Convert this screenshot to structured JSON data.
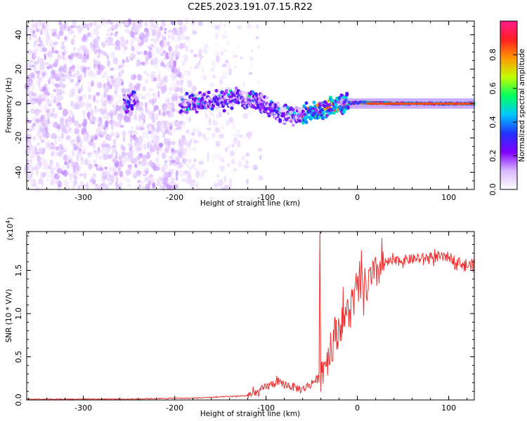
{
  "title": "C2E5.2023.191.07.15.R22",
  "chart_data": [
    {
      "type": "heatmap",
      "xlabel": "Height of straight line (km)",
      "ylabel": "Frequency (Hz)",
      "xlim": [
        -362,
        128
      ],
      "ylim": [
        -50,
        48
      ],
      "xticks": [
        -300,
        -200,
        -100,
        0,
        100
      ],
      "yticks": [
        -40,
        -20,
        0,
        20,
        40
      ],
      "colorbar": {
        "label": "Normalized spectral amplitude",
        "range": [
          0.0,
          1.0
        ],
        "ticks": [
          0.0,
          0.2,
          0.4,
          0.6,
          0.8
        ],
        "colormap": [
          "#ffffff",
          "#d9b8ff",
          "#7f00ff",
          "#2233ff",
          "#00c8ff",
          "#00ff60",
          "#c0ff00",
          "#ff9900",
          "#ff2020",
          "#ff1a8c"
        ]
      },
      "ridge": [
        {
          "x": -250,
          "y": 2
        },
        {
          "x": -190,
          "y": 0
        },
        {
          "x": -160,
          "y": 1
        },
        {
          "x": -130,
          "y": 3
        },
        {
          "x": -110,
          "y": 2
        },
        {
          "x": -95,
          "y": -3
        },
        {
          "x": -80,
          "y": -6
        },
        {
          "x": -65,
          "y": -7
        },
        {
          "x": -50,
          "y": -5
        },
        {
          "x": -35,
          "y": -3
        },
        {
          "x": -20,
          "y": 0
        },
        {
          "x": 0,
          "y": 0.5
        },
        {
          "x": 50,
          "y": 0
        },
        {
          "x": 128,
          "y": 0
        }
      ],
      "noise_region_xmax": -120,
      "dense_noise_xmax": -190
    },
    {
      "type": "line",
      "xlabel": "Height of straight line (km)",
      "ylabel": "SNR (10 * V/V)",
      "multiplier": "(x10",
      "multiplier_exp": "4",
      "multiplier_close": ")",
      "xlim": [
        -362,
        128
      ],
      "ylim": [
        0,
        1.95
      ],
      "xticks": [
        -300,
        -200,
        -100,
        0,
        100
      ],
      "yticks": [
        0.0,
        0.5,
        1.0,
        1.5
      ],
      "color": "#f03030",
      "x": [
        -362,
        -300,
        -250,
        -200,
        -180,
        -160,
        -140,
        -120,
        -110,
        -100,
        -90,
        -80,
        -70,
        -60,
        -50,
        -42,
        -41,
        -40,
        -35,
        -30,
        -25,
        -20,
        -15,
        -10,
        -5,
        0,
        5,
        10,
        15,
        20,
        25,
        30,
        35,
        40,
        50,
        60,
        70,
        80,
        90,
        100,
        110,
        120,
        128
      ],
      "values": [
        0.01,
        0.01,
        0.01,
        0.02,
        0.02,
        0.03,
        0.04,
        0.05,
        0.08,
        0.15,
        0.2,
        0.18,
        0.15,
        0.12,
        0.2,
        0.25,
        1.95,
        0.3,
        0.45,
        0.55,
        0.75,
        0.85,
        0.95,
        1.0,
        1.15,
        1.25,
        1.35,
        1.3,
        1.4,
        1.45,
        1.55,
        1.58,
        1.6,
        1.6,
        1.62,
        1.63,
        1.64,
        1.65,
        1.65,
        1.66,
        1.6,
        1.55,
        1.58
      ]
    }
  ]
}
